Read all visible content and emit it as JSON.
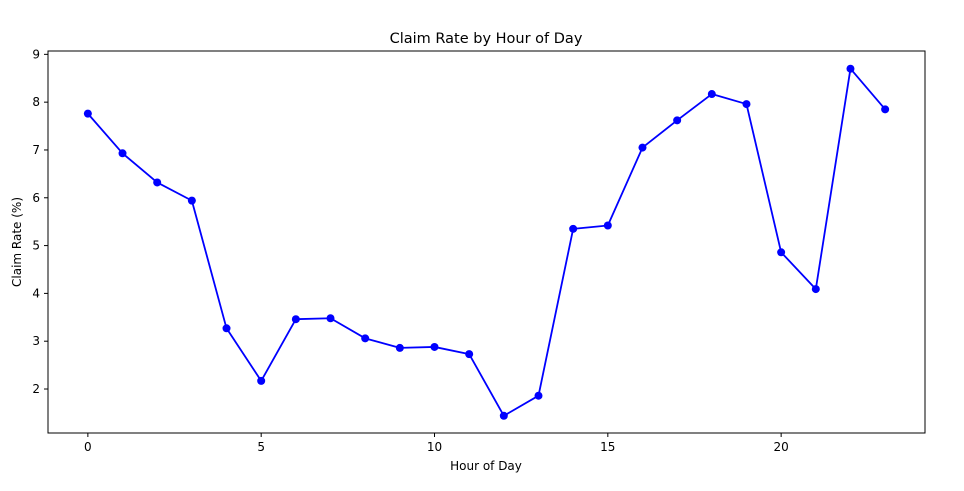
{
  "chart_data": {
    "type": "line",
    "title": "Claim Rate by Hour of Day",
    "xlabel": "Hour of Day",
    "ylabel": "Claim Rate (%)",
    "xlim": [
      -1.15,
      24.15
    ],
    "ylim": [
      1.08,
      9.07
    ],
    "xticks": [
      0,
      5,
      10,
      15,
      20
    ],
    "yticks": [
      2,
      3,
      4,
      5,
      6,
      7,
      8,
      9
    ],
    "grid": false,
    "series": [
      {
        "color": "#0000ff",
        "marker": "circle",
        "x": [
          0,
          1,
          2,
          3,
          4,
          5,
          6,
          7,
          8,
          9,
          10,
          11,
          12,
          13,
          14,
          15,
          16,
          17,
          18,
          19,
          20,
          21,
          22,
          23
        ],
        "values": [
          7.76,
          6.93,
          6.32,
          5.94,
          3.27,
          2.17,
          3.46,
          3.48,
          3.06,
          2.86,
          2.88,
          2.73,
          1.44,
          1.86,
          5.35,
          5.42,
          7.05,
          7.62,
          8.17,
          7.96,
          4.86,
          4.09,
          8.7,
          7.85
        ]
      }
    ]
  }
}
